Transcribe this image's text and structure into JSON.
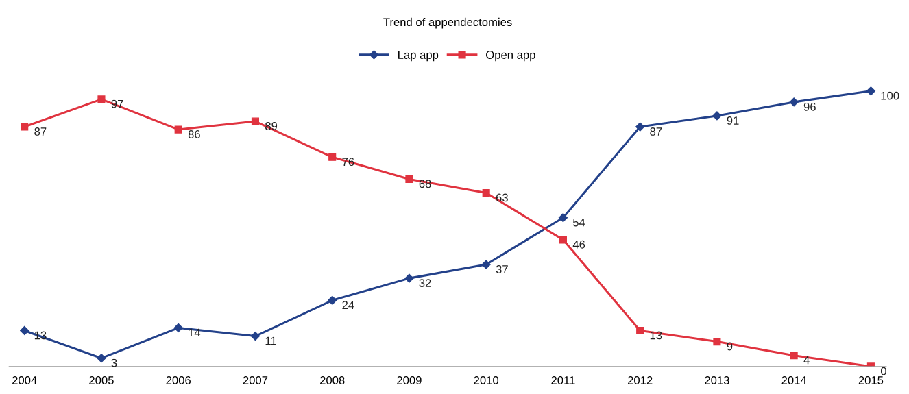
{
  "chart_data": {
    "type": "line",
    "title": "Trend of appendectomies",
    "categories": [
      "2004",
      "2005",
      "2006",
      "2007",
      "2008",
      "2009",
      "2010",
      "2011",
      "2012",
      "2013",
      "2014",
      "2015"
    ],
    "series": [
      {
        "name": "Lap app",
        "color": "#23418a",
        "marker": "diamond",
        "values": [
          13,
          3,
          14,
          11,
          24,
          32,
          37,
          54,
          87,
          91,
          96,
          100
        ]
      },
      {
        "name": "Open app",
        "color": "#e0333f",
        "marker": "square",
        "values": [
          87,
          97,
          86,
          89,
          76,
          68,
          63,
          46,
          13,
          9,
          4,
          0
        ]
      }
    ],
    "data_labels": true,
    "legend": "top",
    "grid": false,
    "tick_labels": "x",
    "line_style": "solid"
  }
}
